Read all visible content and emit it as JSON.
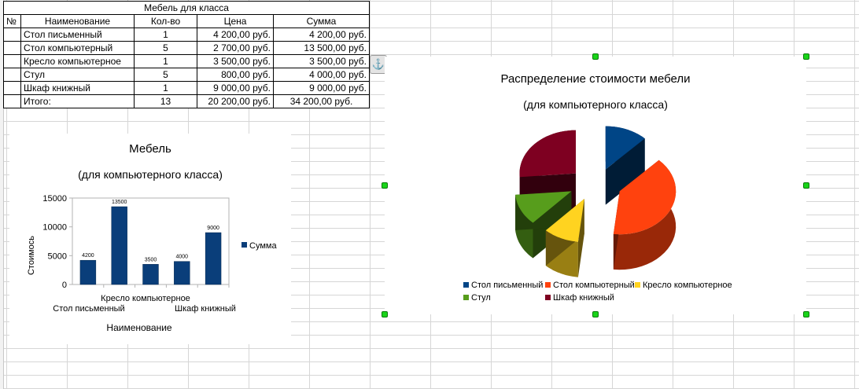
{
  "table": {
    "title": "Мебель для класса",
    "headers": [
      "№",
      "Наименование",
      "Кол-во",
      "Цена",
      "Сумма"
    ],
    "rows": [
      {
        "name": "Стол письменный",
        "qty": "1",
        "price": "4 200,00 руб.",
        "sum": "4 200,00 руб."
      },
      {
        "name": "Стол компьютерный",
        "qty": "5",
        "price": "2 700,00 руб.",
        "sum": "13 500,00 руб."
      },
      {
        "name": "Кресло компьютерное",
        "qty": "1",
        "price": "3 500,00 руб.",
        "sum": "3 500,00 руб."
      },
      {
        "name": "Стул",
        "qty": "5",
        "price": "800,00 руб.",
        "sum": "4 000,00 руб."
      },
      {
        "name": "Шкаф книжный",
        "qty": "1",
        "price": "9 000,00 руб.",
        "sum": "9 000,00 руб."
      }
    ],
    "total": {
      "label": "Итого:",
      "qty": "13",
      "price": "20 200,00 руб.",
      "sum": "34 200,00 руб."
    }
  },
  "anchor_icon": "anchor-icon",
  "chart_data": [
    {
      "type": "bar",
      "title": "Мебель",
      "subtitle": "(для компьютерного класса)",
      "xlabel": "Наименование",
      "ylabel": "Стоимось",
      "categories": [
        "Стол письменный",
        "Стол компьютерный",
        "Кресло компьютерное",
        "Стул",
        "Шкаф книжный"
      ],
      "visible_tick_labels": {
        "row1": [
          "Кресло компьютерное"
        ],
        "row2": [
          "Стол письменный",
          "Шкаф книжный"
        ]
      },
      "series": [
        {
          "name": "Сумма",
          "values": [
            4200,
            13500,
            3500,
            4000,
            9000
          ],
          "color": "#0a3e7a"
        }
      ],
      "ylim": [
        0,
        15000
      ],
      "yticks": [
        0,
        5000,
        10000,
        15000
      ],
      "grid": false,
      "legend": "right"
    },
    {
      "type": "pie",
      "title": "Распределение стоимости мебели",
      "subtitle": "(для компьютерного класса)",
      "labels": [
        "Стол письменный",
        "Стол компьютерный",
        "Кресло компьютерное",
        "Стул",
        "Шкаф книжный"
      ],
      "values": [
        4200,
        13500,
        3500,
        4000,
        9000
      ],
      "colors": [
        "#004586",
        "#ff420e",
        "#ffd320",
        "#579d1c",
        "#7e0021"
      ],
      "style": "3d-exploded",
      "legend": "bottom"
    }
  ]
}
